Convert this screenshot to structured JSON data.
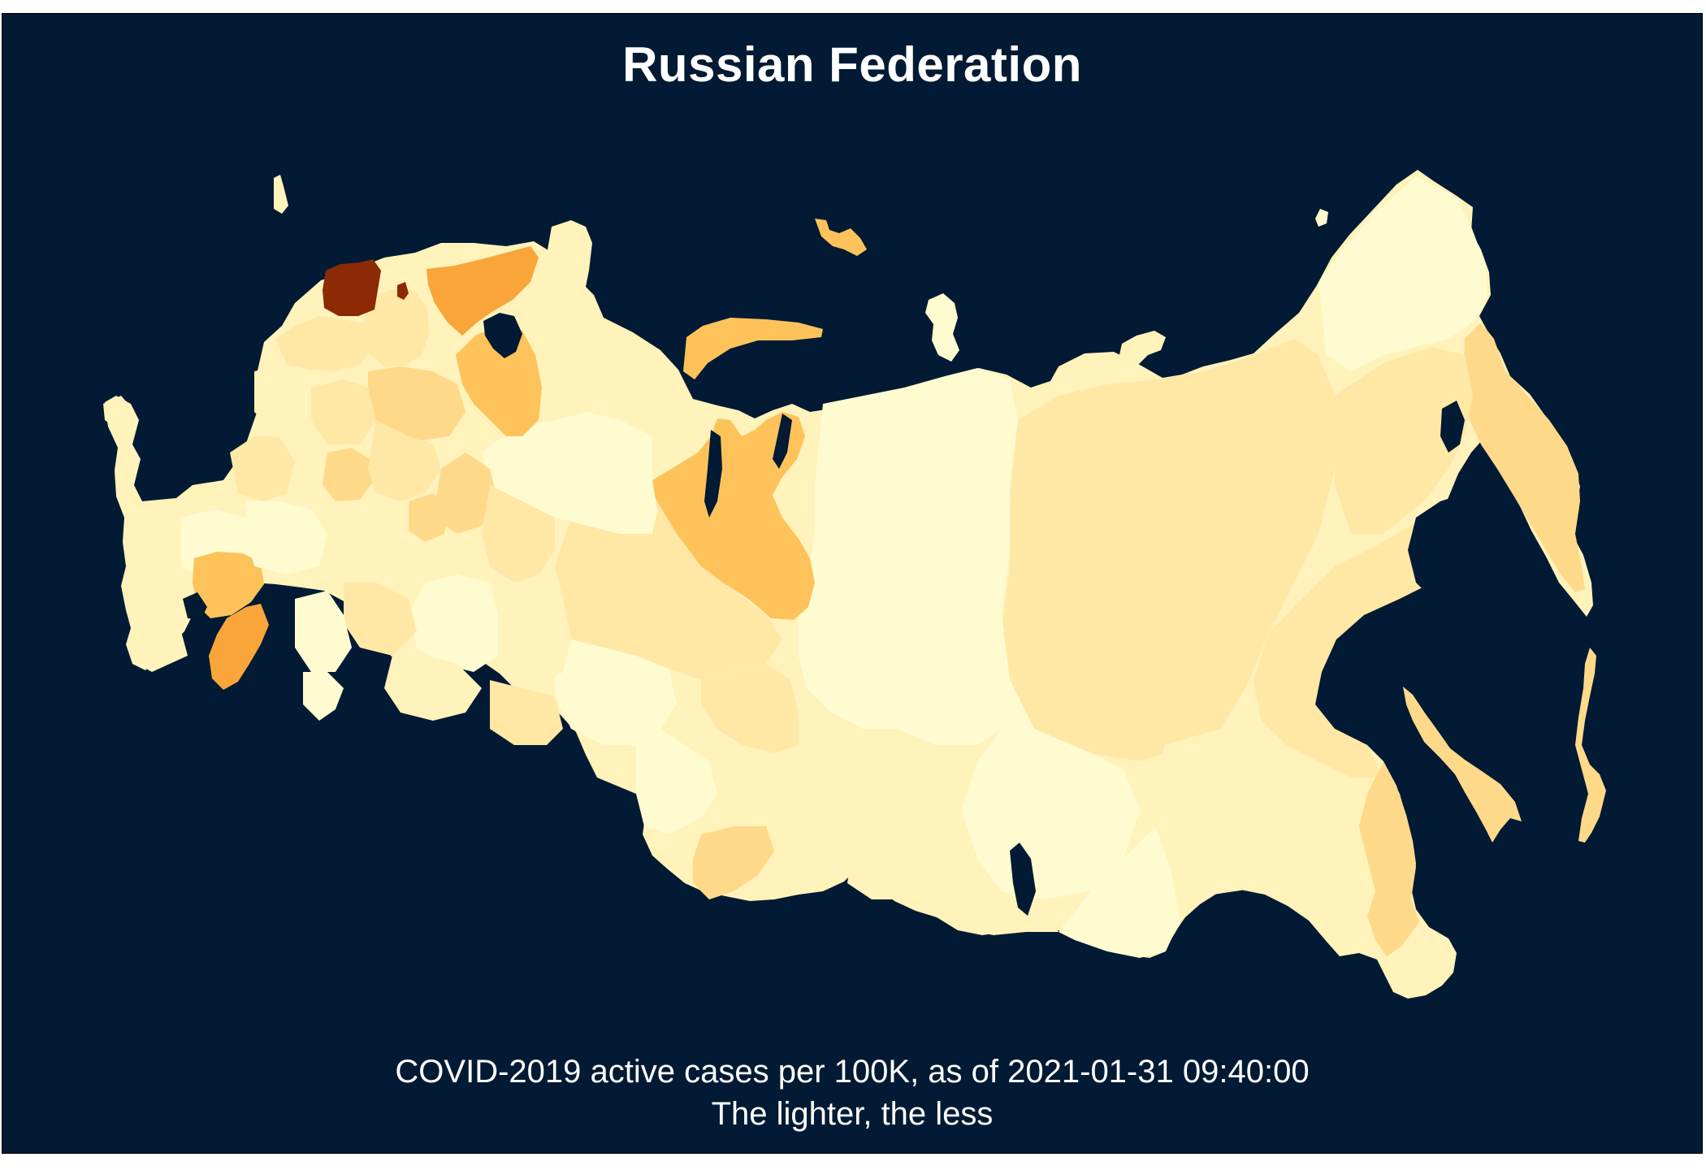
{
  "title": "Russian Federation",
  "caption": {
    "line1": "COVID-2019 active cases per 100K, as of 2021-01-31 09:40:00",
    "line2": "The lighter, the less"
  },
  "colors": {
    "background": "#021a33",
    "scale": [
      "#fffbd0",
      "#fff2bb",
      "#ffe8a6",
      "#ffd98a",
      "#fdc35a",
      "#f9a53a",
      "#eb8a2a",
      "#8b2a04"
    ]
  }
}
